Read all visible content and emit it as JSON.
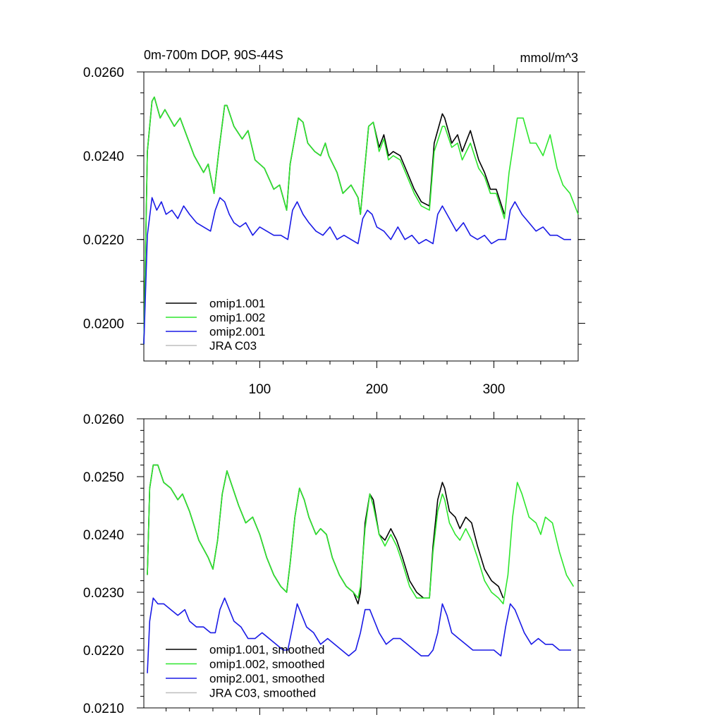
{
  "chart_data": [
    {
      "type": "line",
      "title": "0m-700m DOP, 90S-44S",
      "units": "mmol/m^3",
      "xlim": [
        1,
        372
      ],
      "ylim": [
        0.0191,
        0.026
      ],
      "xticks": [
        100,
        200,
        300
      ],
      "xtick_labels": [
        "100",
        "200",
        "300"
      ],
      "yticks": [
        0.02,
        0.022,
        0.024,
        0.026
      ],
      "ytick_labels": [
        "0.0200",
        "0.0220",
        "0.0240",
        "0.0260"
      ],
      "legend_position": "bottom-left",
      "legend": [
        "omip1.001",
        "omip1.002",
        "omip2.001",
        "JRA C03"
      ],
      "series": [
        {
          "name": "omip1.001",
          "color": "#000000",
          "x": [
            1,
            4,
            8,
            10,
            15,
            19,
            27,
            32,
            36,
            44,
            52,
            56,
            61,
            65,
            70,
            72,
            78,
            85,
            90,
            96,
            104,
            112,
            117,
            123,
            126,
            133,
            137,
            141,
            147,
            152,
            156,
            159,
            166,
            171,
            178,
            184,
            186,
            193,
            197,
            202,
            206,
            210,
            214,
            220,
            226,
            232,
            238,
            245,
            249,
            256,
            258,
            264,
            269,
            273,
            280,
            287,
            292,
            297,
            302,
            309
          ],
          "y": [
            0.0195,
            0.0241,
            0.0253,
            0.0254,
            0.0249,
            0.0251,
            0.0247,
            0.0249,
            0.0246,
            0.024,
            0.0236,
            0.0238,
            0.0231,
            0.0241,
            0.0252,
            0.0252,
            0.0247,
            0.0244,
            0.0246,
            0.0239,
            0.0237,
            0.0232,
            0.0233,
            0.0227,
            0.0238,
            0.0249,
            0.0248,
            0.0243,
            0.0241,
            0.024,
            0.0243,
            0.024,
            0.0236,
            0.0231,
            0.0233,
            0.023,
            0.0226,
            0.0247,
            0.0248,
            0.0242,
            0.0245,
            0.024,
            0.0241,
            0.024,
            0.0236,
            0.0232,
            0.0229,
            0.0228,
            0.0243,
            0.025,
            0.0249,
            0.0243,
            0.0245,
            0.0241,
            0.0246,
            0.0239,
            0.0236,
            0.0232,
            0.0232,
            0.0226
          ]
        },
        {
          "name": "omip1.002",
          "color": "#2ee62e",
          "x": [
            1,
            4,
            8,
            10,
            15,
            19,
            27,
            32,
            36,
            44,
            52,
            56,
            61,
            65,
            70,
            72,
            78,
            85,
            90,
            96,
            104,
            112,
            117,
            123,
            126,
            133,
            137,
            141,
            147,
            152,
            156,
            159,
            166,
            171,
            178,
            184,
            186,
            193,
            197,
            202,
            206,
            210,
            214,
            220,
            226,
            232,
            238,
            245,
            249,
            256,
            258,
            264,
            269,
            273,
            280,
            287,
            292,
            297,
            302,
            309,
            313,
            320,
            325,
            331,
            336,
            342,
            348,
            354,
            359,
            365,
            372
          ],
          "y": [
            0.0195,
            0.0241,
            0.0253,
            0.0254,
            0.0249,
            0.0251,
            0.0247,
            0.0249,
            0.0246,
            0.024,
            0.0236,
            0.0238,
            0.0231,
            0.0241,
            0.0252,
            0.0252,
            0.0247,
            0.0244,
            0.0246,
            0.0239,
            0.0237,
            0.0232,
            0.0233,
            0.0227,
            0.0238,
            0.0249,
            0.0248,
            0.0243,
            0.0241,
            0.024,
            0.0243,
            0.024,
            0.0236,
            0.0231,
            0.0233,
            0.023,
            0.0226,
            0.0247,
            0.0248,
            0.0241,
            0.0244,
            0.0239,
            0.024,
            0.0239,
            0.0235,
            0.0231,
            0.0228,
            0.0227,
            0.0241,
            0.0247,
            0.0247,
            0.0242,
            0.0243,
            0.0239,
            0.0243,
            0.0237,
            0.0235,
            0.0231,
            0.0231,
            0.0225,
            0.0236,
            0.0249,
            0.0249,
            0.0243,
            0.0243,
            0.024,
            0.0245,
            0.0237,
            0.0233,
            0.0231,
            0.0226
          ]
        },
        {
          "name": "omip2.001",
          "color": "#1a1ae6",
          "x": [
            1,
            4,
            8,
            12,
            16,
            20,
            25,
            30,
            35,
            40,
            46,
            52,
            58,
            62,
            66,
            70,
            74,
            78,
            83,
            88,
            94,
            100,
            106,
            112,
            118,
            124,
            128,
            132,
            137,
            142,
            148,
            154,
            160,
            166,
            172,
            178,
            184,
            188,
            192,
            196,
            200,
            206,
            212,
            218,
            224,
            230,
            236,
            242,
            248,
            252,
            256,
            262,
            268,
            274,
            280,
            286,
            292,
            298,
            304,
            310,
            314,
            318,
            324,
            330,
            336,
            342,
            348,
            354,
            360,
            366
          ],
          "y": [
            0.0195,
            0.0221,
            0.023,
            0.0227,
            0.0229,
            0.0226,
            0.0227,
            0.0225,
            0.0228,
            0.0226,
            0.0224,
            0.0223,
            0.0222,
            0.0227,
            0.023,
            0.0229,
            0.0226,
            0.0224,
            0.0223,
            0.0224,
            0.0221,
            0.0223,
            0.0222,
            0.0221,
            0.0221,
            0.022,
            0.0227,
            0.0229,
            0.0226,
            0.0224,
            0.0222,
            0.0221,
            0.0223,
            0.022,
            0.0221,
            0.022,
            0.0219,
            0.0225,
            0.0227,
            0.0226,
            0.0223,
            0.0222,
            0.022,
            0.0223,
            0.022,
            0.0221,
            0.0219,
            0.022,
            0.0219,
            0.0226,
            0.0228,
            0.0225,
            0.0222,
            0.0224,
            0.0221,
            0.022,
            0.0221,
            0.0219,
            0.022,
            0.022,
            0.0227,
            0.0229,
            0.0226,
            0.0224,
            0.0222,
            0.0223,
            0.0221,
            0.0221,
            0.022,
            0.022
          ]
        },
        {
          "name": "JRA C03",
          "color": "#bebebe",
          "x": [],
          "y": []
        }
      ]
    },
    {
      "type": "line",
      "xlim": [
        1,
        372
      ],
      "ylim": [
        0.021,
        0.026
      ],
      "xticks": [
        100,
        200,
        300
      ],
      "xtick_labels": [],
      "yticks": [
        0.021,
        0.022,
        0.023,
        0.024,
        0.025,
        0.026
      ],
      "ytick_labels": [
        "0.0210",
        "0.0220",
        "0.0230",
        "0.0240",
        "0.0250",
        "0.0260"
      ],
      "legend_position": "bottom-left",
      "legend": [
        "omip1.001, smoothed",
        "omip1.002, smoothed",
        "omip2.001, smoothed",
        "JRA C03, smoothed"
      ],
      "series": [
        {
          "name": "omip1.001, smoothed",
          "color": "#000000",
          "x": [
            4,
            6,
            9,
            13,
            18,
            24,
            30,
            34,
            40,
            48,
            56,
            60,
            64,
            68,
            72,
            77,
            82,
            88,
            94,
            100,
            106,
            112,
            118,
            123,
            126,
            130,
            134,
            138,
            142,
            148,
            152,
            157,
            162,
            168,
            174,
            180,
            184,
            186,
            190,
            194,
            197,
            202,
            207,
            212,
            217,
            222,
            228,
            234,
            240,
            245,
            248,
            252,
            256,
            258,
            262,
            267,
            271,
            276,
            281,
            286,
            292,
            298,
            304,
            308
          ],
          "y": [
            0.0233,
            0.0248,
            0.0252,
            0.0252,
            0.0249,
            0.0248,
            0.0246,
            0.0247,
            0.0244,
            0.0239,
            0.0236,
            0.0234,
            0.0239,
            0.0247,
            0.0251,
            0.0248,
            0.0245,
            0.0242,
            0.0243,
            0.024,
            0.0236,
            0.0233,
            0.0231,
            0.023,
            0.0235,
            0.0243,
            0.0248,
            0.0246,
            0.0243,
            0.024,
            0.0241,
            0.024,
            0.0236,
            0.0233,
            0.0231,
            0.023,
            0.0228,
            0.023,
            0.0242,
            0.0247,
            0.0246,
            0.024,
            0.0239,
            0.0241,
            0.0239,
            0.0236,
            0.0232,
            0.023,
            0.0229,
            0.0229,
            0.0238,
            0.0246,
            0.0249,
            0.0248,
            0.0244,
            0.0243,
            0.0241,
            0.0243,
            0.0242,
            0.0238,
            0.0234,
            0.0232,
            0.0231,
            0.0229
          ]
        },
        {
          "name": "omip1.002, smoothed",
          "color": "#2ee62e",
          "x": [
            4,
            6,
            9,
            13,
            18,
            24,
            30,
            34,
            40,
            48,
            56,
            60,
            64,
            68,
            72,
            77,
            82,
            88,
            94,
            100,
            106,
            112,
            118,
            123,
            126,
            130,
            134,
            138,
            142,
            148,
            152,
            157,
            162,
            168,
            174,
            180,
            184,
            186,
            190,
            194,
            197,
            202,
            207,
            212,
            217,
            222,
            228,
            234,
            240,
            245,
            248,
            252,
            256,
            258,
            262,
            267,
            271,
            276,
            281,
            286,
            292,
            298,
            304,
            308,
            312,
            316,
            320,
            324,
            330,
            336,
            340,
            344,
            350,
            356,
            362,
            368
          ],
          "y": [
            0.0233,
            0.0248,
            0.0252,
            0.0252,
            0.0249,
            0.0248,
            0.0246,
            0.0247,
            0.0244,
            0.0239,
            0.0236,
            0.0234,
            0.0239,
            0.0247,
            0.0251,
            0.0248,
            0.0245,
            0.0242,
            0.0243,
            0.024,
            0.0236,
            0.0233,
            0.0231,
            0.023,
            0.0235,
            0.0243,
            0.0248,
            0.0246,
            0.0243,
            0.024,
            0.0241,
            0.024,
            0.0236,
            0.0233,
            0.0231,
            0.023,
            0.0229,
            0.0231,
            0.0241,
            0.0247,
            0.0245,
            0.024,
            0.0238,
            0.024,
            0.0238,
            0.0235,
            0.0231,
            0.0229,
            0.0229,
            0.0229,
            0.0237,
            0.0244,
            0.0247,
            0.0246,
            0.0242,
            0.024,
            0.0239,
            0.0241,
            0.0239,
            0.0236,
            0.0232,
            0.023,
            0.0229,
            0.0228,
            0.0233,
            0.0243,
            0.0249,
            0.0247,
            0.0243,
            0.0242,
            0.024,
            0.0243,
            0.0242,
            0.0237,
            0.0233,
            0.0231
          ]
        },
        {
          "name": "omip2.001, smoothed",
          "color": "#1a1ae6",
          "x": [
            4,
            6,
            9,
            13,
            18,
            24,
            30,
            36,
            40,
            46,
            52,
            58,
            62,
            66,
            70,
            74,
            78,
            84,
            90,
            96,
            102,
            108,
            114,
            120,
            124,
            128,
            132,
            136,
            140,
            146,
            152,
            158,
            164,
            170,
            176,
            182,
            186,
            190,
            194,
            198,
            202,
            208,
            214,
            220,
            226,
            232,
            238,
            244,
            248,
            252,
            256,
            260,
            264,
            270,
            276,
            282,
            288,
            294,
            300,
            306,
            310,
            314,
            318,
            322,
            326,
            332,
            338,
            344,
            350,
            356,
            362,
            366
          ],
          "y": [
            0.0216,
            0.0225,
            0.0229,
            0.0228,
            0.0228,
            0.0227,
            0.0226,
            0.0227,
            0.0225,
            0.0224,
            0.0224,
            0.0223,
            0.0223,
            0.0227,
            0.0229,
            0.0227,
            0.0225,
            0.0224,
            0.0222,
            0.0222,
            0.0223,
            0.0222,
            0.0221,
            0.022,
            0.022,
            0.0224,
            0.0228,
            0.0226,
            0.0224,
            0.0223,
            0.0221,
            0.0222,
            0.0221,
            0.022,
            0.0219,
            0.022,
            0.0223,
            0.0227,
            0.0227,
            0.0225,
            0.0223,
            0.0221,
            0.0222,
            0.0222,
            0.0221,
            0.022,
            0.0219,
            0.0219,
            0.022,
            0.0223,
            0.0228,
            0.0226,
            0.0223,
            0.0222,
            0.0221,
            0.022,
            0.022,
            0.022,
            0.022,
            0.0219,
            0.0224,
            0.0228,
            0.0227,
            0.0225,
            0.0223,
            0.0221,
            0.0222,
            0.0221,
            0.0221,
            0.022,
            0.022,
            0.022
          ]
        },
        {
          "name": "JRA C03, smoothed",
          "color": "#bebebe",
          "x": [],
          "y": []
        }
      ]
    }
  ]
}
